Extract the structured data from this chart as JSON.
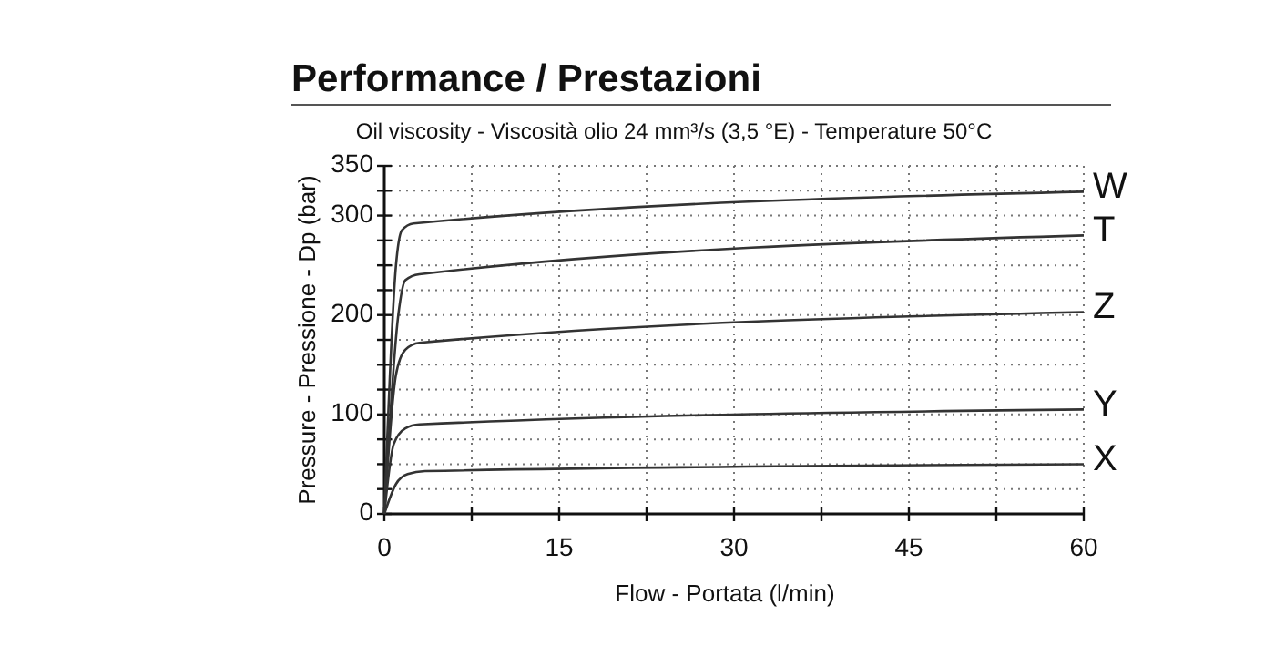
{
  "chart_data": {
    "type": "line",
    "title": "Performance / Prestazioni",
    "subtitle": "Oil viscosity - Viscosità olio 24 mm³/s (3,5 °E) - Temperature 50°C",
    "xlabel": "Flow - Portata (l/min)",
    "ylabel": "Pressure - Pressione - Dp (bar)",
    "series": [
      {
        "name": "W",
        "color": "#333333",
        "x": [
          0,
          1,
          1.5,
          2.5,
          60
        ],
        "values": [
          0,
          250,
          285,
          292,
          324
        ]
      },
      {
        "name": "T",
        "color": "#333333",
        "x": [
          0,
          1.2,
          1.8,
          3,
          60
        ],
        "values": [
          0,
          200,
          235,
          241,
          280
        ]
      },
      {
        "name": "Z",
        "color": "#333333",
        "x": [
          0,
          1,
          1.8,
          3,
          60
        ],
        "values": [
          0,
          140,
          165,
          172,
          203
        ]
      },
      {
        "name": "Y",
        "color": "#333333",
        "x": [
          0,
          0.8,
          1.8,
          3,
          60
        ],
        "values": [
          0,
          70,
          86,
          90,
          105
        ]
      },
      {
        "name": "X",
        "color": "#333333",
        "x": [
          0,
          1,
          2,
          3.5,
          60
        ],
        "values": [
          0,
          30,
          40,
          43,
          50
        ]
      }
    ],
    "xlim": [
      0,
      60
    ],
    "ylim": [
      0,
      350
    ],
    "xticks": [
      0,
      {
        "value": 7.5,
        "label": null
      },
      15,
      {
        "value": 22.5,
        "label": null
      },
      30,
      {
        "value": 37.5,
        "label": null
      },
      45,
      {
        "value": 52.5,
        "label": null
      },
      60
    ],
    "yticks": [
      0,
      {
        "value": 25,
        "label": null
      },
      {
        "value": 50,
        "label": null
      },
      {
        "value": 75,
        "label": null
      },
      100,
      {
        "value": 125,
        "label": null
      },
      {
        "value": 150,
        "label": null
      },
      {
        "value": 175,
        "label": null
      },
      200,
      {
        "value": 225,
        "label": null
      },
      {
        "value": 250,
        "label": null
      },
      {
        "value": 275,
        "label": null
      },
      300,
      {
        "value": 325,
        "label": null
      },
      350
    ],
    "grid": true,
    "line_style": "solid",
    "marker": "none"
  }
}
